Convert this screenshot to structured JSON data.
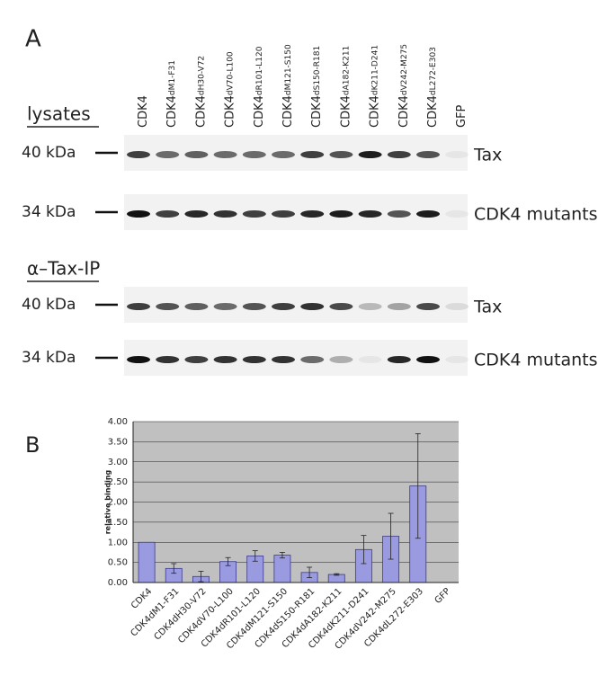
{
  "panel_a": {
    "label": "A",
    "lanes": [
      {
        "base": "CDK4"
      },
      {
        "base": "CDK4",
        "sub": "dM1-F31"
      },
      {
        "base": "CDK4",
        "sub": "dH30-V72"
      },
      {
        "base": "CDK4",
        "sub": "dV70-L100"
      },
      {
        "base": "CDK4",
        "sub": "dR101-L120"
      },
      {
        "base": "CDK4",
        "sub": "dM121-S150"
      },
      {
        "base": "CDK4",
        "sub": "dS150-R181"
      },
      {
        "base": "CDK4",
        "sub": "dA182-K211"
      },
      {
        "base": "CDK4",
        "sub": "dK211-D241"
      },
      {
        "base": "CDK4",
        "sub": "dV242-M275"
      },
      {
        "base": "CDK4",
        "sub": "dL272-E303"
      },
      {
        "base": "GFP"
      }
    ],
    "sections": [
      {
        "title": "lysates",
        "blots": [
          {
            "marker": "40 kDa",
            "label": "Tax"
          },
          {
            "marker": "34 kDa",
            "label": "CDK4 mutants"
          }
        ]
      },
      {
        "title": "α–Tax-IP",
        "blots": [
          {
            "marker": "40 kDa",
            "label": "Tax"
          },
          {
            "marker": "34 kDa",
            "label": "CDK4 mutants"
          }
        ]
      }
    ]
  },
  "chart_data": {
    "type": "bar",
    "panel_label": "B",
    "y_label": "relative binding",
    "categories": [
      "CDK4",
      "CDK4dM1-F31",
      "CDK4dH30-V72",
      "CDK4dV70-L100",
      "CDK4dR101-L120",
      "CDK4dM121-S150",
      "CDK4dS150-R181",
      "CDK4dA182-K211",
      "CDK4dK211-D241",
      "CDK4dV242-M275",
      "CDK4dL272-E303",
      "GFP"
    ],
    "values": [
      1.0,
      0.35,
      0.15,
      0.52,
      0.66,
      0.68,
      0.25,
      0.2,
      0.82,
      1.15,
      2.4,
      0
    ],
    "errors": [
      0,
      0.12,
      0.13,
      0.1,
      0.13,
      0.07,
      0.13,
      0.02,
      0.35,
      0.57,
      1.3,
      0
    ],
    "color": "#9a9ae0",
    "ylim": [
      0,
      4
    ],
    "yticks": [
      {
        "value": 0,
        "label": "0.00"
      },
      {
        "value": 0.5,
        "label": "0.50"
      },
      {
        "value": 1,
        "label": "1.00"
      },
      {
        "value": 1.5,
        "label": "1.50"
      },
      {
        "value": 2,
        "label": "2.00"
      },
      {
        "value": 2.5,
        "label": "2.50"
      },
      {
        "value": 3,
        "label": "3.00"
      },
      {
        "value": 3.5,
        "label": "3.50"
      },
      {
        "value": 4,
        "label": "4.00"
      }
    ],
    "grid": true
  }
}
